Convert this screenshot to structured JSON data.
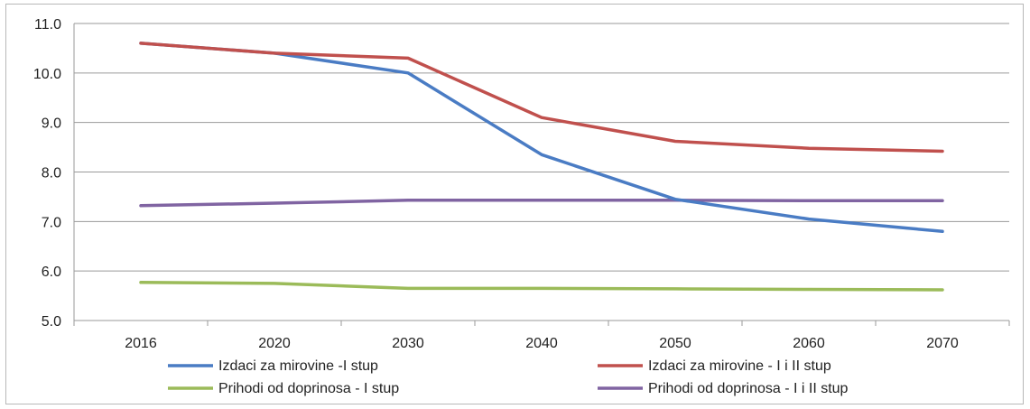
{
  "chart_data": {
    "type": "line",
    "x": [
      "2016",
      "2020",
      "2030",
      "2040",
      "2050",
      "2060",
      "2070"
    ],
    "ylim": [
      5.0,
      11.0
    ],
    "yticks": [
      "5.0",
      "6.0",
      "7.0",
      "8.0",
      "9.0",
      "10.0",
      "11.0"
    ],
    "grid": true,
    "legend_placement": "bottom",
    "series": [
      {
        "name": "Izdaci za mirovine -I stup",
        "color": "#4a7cc4",
        "values": [
          10.6,
          10.4,
          10.0,
          8.35,
          7.45,
          7.05,
          6.8
        ]
      },
      {
        "name": "Izdaci za mirovine - I i II stup",
        "color": "#c0504d",
        "values": [
          10.6,
          10.4,
          10.3,
          9.1,
          8.62,
          8.48,
          8.42
        ]
      },
      {
        "name": "Prihodi od doprinosa - I stup",
        "color": "#9bbb59",
        "values": [
          5.77,
          5.75,
          5.65,
          5.65,
          5.64,
          5.63,
          5.62
        ]
      },
      {
        "name": "Prihodi od doprinosa - I i II stup",
        "color": "#8064a2",
        "values": [
          7.32,
          7.37,
          7.43,
          7.43,
          7.43,
          7.42,
          7.42
        ]
      }
    ]
  }
}
